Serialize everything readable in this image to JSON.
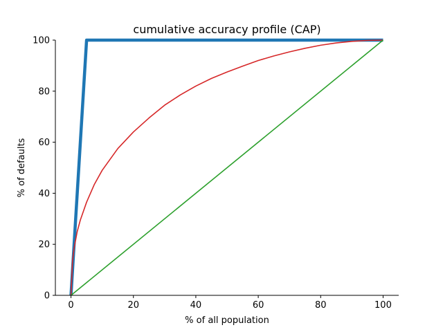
{
  "chart_data": {
    "type": "line",
    "title": "cumulative accuracy profile (CAP)",
    "xlabel": "% of all population",
    "ylabel": "% of defaults",
    "xlim": [
      -5,
      105
    ],
    "ylim": [
      0,
      100
    ],
    "xticks": [
      0,
      20,
      40,
      60,
      80,
      100
    ],
    "yticks": [
      0,
      20,
      40,
      60,
      80,
      100
    ],
    "grid": false,
    "spines": [
      "left",
      "bottom"
    ],
    "series": [
      {
        "name": "",
        "color": "#1f77b4",
        "width": "thick",
        "x": [
          0,
          5,
          100
        ],
        "y": [
          0,
          100,
          100
        ]
      },
      {
        "name": "",
        "color": "#d62728",
        "width": "normal",
        "x": [
          0,
          0.5,
          1,
          2,
          3,
          5,
          7.5,
          10,
          15,
          20,
          25,
          30,
          35,
          40,
          45,
          50,
          55,
          60,
          65,
          70,
          75,
          80,
          85,
          90,
          95,
          100
        ],
        "y": [
          0,
          13.5,
          18.5,
          25,
          29.5,
          36.5,
          43.5,
          49,
          57.5,
          64,
          69.5,
          74.5,
          78.5,
          82,
          85,
          87.5,
          89.8,
          92,
          93.8,
          95.4,
          96.8,
          98,
          98.9,
          99.5,
          99.9,
          100
        ]
      },
      {
        "name": "",
        "color": "#2ca02c",
        "width": "normal",
        "x": [
          0,
          100
        ],
        "y": [
          0,
          100
        ]
      }
    ]
  }
}
